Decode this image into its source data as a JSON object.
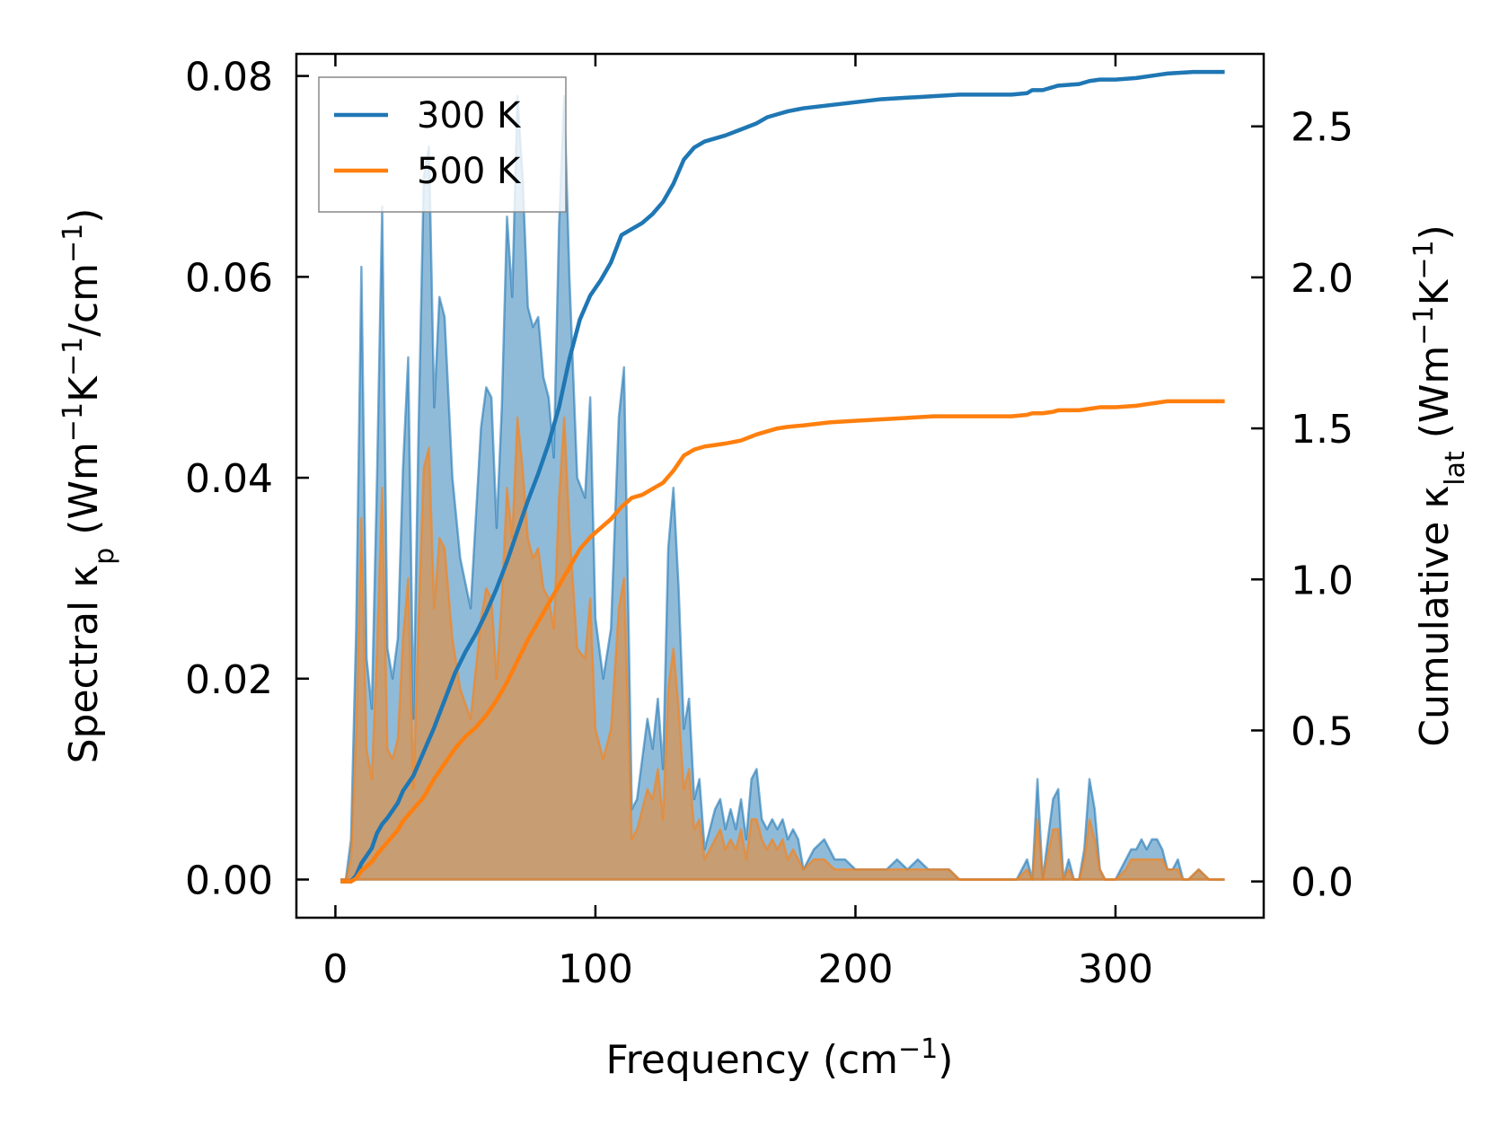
{
  "chart_data": {
    "type": "area",
    "xlabel": {
      "main": "Frequency (cm",
      "sup": "−1",
      "tail": ")"
    },
    "ylabel_left": {
      "parts": [
        "Spectral κ",
        "p",
        " (Wm",
        "−1",
        "K",
        "−1",
        "/cm",
        "−1",
        ")"
      ]
    },
    "ylabel_right": {
      "parts": [
        "Cumulative κ",
        "lat",
        " (Wm",
        "−1",
        "K",
        "−1",
        ")"
      ]
    },
    "xlim": [
      -15,
      357
    ],
    "ylim_left": [
      -0.0038,
      0.0822
    ],
    "ylim_right": [
      -0.12,
      2.74
    ],
    "x_ticks": [
      0,
      100,
      200,
      300
    ],
    "x_tick_labels": [
      "0",
      "100",
      "200",
      "300"
    ],
    "y_left_ticks": [
      0.0,
      0.02,
      0.04,
      0.06,
      0.08
    ],
    "y_left_tick_labels": [
      "0.00",
      "0.02",
      "0.04",
      "0.06",
      "0.08"
    ],
    "y_right_ticks": [
      0.0,
      0.5,
      1.0,
      1.5,
      2.0,
      2.5
    ],
    "y_right_tick_labels": [
      "0.0",
      "0.5",
      "1.0",
      "1.5",
      "2.0",
      "2.5"
    ],
    "legend": {
      "position": "top-left",
      "entries": [
        "300 K",
        "500 K"
      ]
    },
    "colors": {
      "300 K": "#1f77b4",
      "500 K": "#ff7f0e"
    },
    "spectral": {
      "x": [
        2,
        4,
        6,
        8,
        10,
        12,
        14,
        16,
        18,
        20,
        22,
        24,
        26,
        28,
        30,
        32,
        34,
        36,
        38,
        40,
        42,
        45,
        48,
        52,
        56,
        58,
        60,
        62,
        64,
        66,
        68,
        70,
        72,
        74,
        76,
        78,
        80,
        82,
        84,
        86,
        88,
        90,
        93,
        96,
        98,
        100,
        103,
        106,
        109,
        111,
        114,
        116,
        118,
        120,
        122,
        124,
        126,
        128,
        130,
        132,
        134,
        136,
        138,
        140,
        142,
        144,
        146,
        148,
        150,
        152,
        154,
        156,
        158,
        160,
        162,
        164,
        166,
        168,
        170,
        172,
        174,
        176,
        178,
        180,
        184,
        188,
        192,
        196,
        200,
        206,
        212,
        216,
        220,
        224,
        228,
        232,
        236,
        240,
        244,
        250,
        256,
        262,
        266,
        268,
        270,
        272,
        276,
        278,
        280,
        282,
        284,
        286,
        288,
        290,
        292,
        294,
        296,
        300,
        304,
        306,
        308,
        310,
        312,
        314,
        316,
        318,
        320,
        322,
        324,
        326,
        328,
        332,
        336,
        342
      ],
      "series": [
        {
          "name": "300 K",
          "values": [
            0.0,
            0.0,
            0.004,
            0.025,
            0.061,
            0.022,
            0.017,
            0.04,
            0.067,
            0.023,
            0.02,
            0.024,
            0.041,
            0.052,
            0.016,
            0.045,
            0.07,
            0.073,
            0.047,
            0.058,
            0.056,
            0.04,
            0.032,
            0.027,
            0.045,
            0.049,
            0.048,
            0.035,
            0.047,
            0.066,
            0.058,
            0.078,
            0.07,
            0.057,
            0.055,
            0.056,
            0.05,
            0.048,
            0.042,
            0.065,
            0.078,
            0.06,
            0.04,
            0.038,
            0.048,
            0.026,
            0.02,
            0.025,
            0.046,
            0.051,
            0.007,
            0.008,
            0.012,
            0.016,
            0.013,
            0.018,
            0.011,
            0.033,
            0.039,
            0.029,
            0.015,
            0.018,
            0.008,
            0.01,
            0.003,
            0.005,
            0.007,
            0.008,
            0.005,
            0.007,
            0.005,
            0.008,
            0.004,
            0.01,
            0.011,
            0.006,
            0.005,
            0.006,
            0.005,
            0.006,
            0.004,
            0.005,
            0.004,
            0.001,
            0.003,
            0.004,
            0.002,
            0.002,
            0.001,
            0.001,
            0.001,
            0.002,
            0.001,
            0.002,
            0.001,
            0.001,
            0.001,
            0.0,
            0.0,
            0.0,
            0.0,
            0.0,
            0.002,
            0.0,
            0.01,
            0.0,
            0.008,
            0.009,
            0.0,
            0.002,
            0.0,
            0.0,
            0.003,
            0.01,
            0.007,
            0.001,
            0.0,
            0.0,
            0.002,
            0.003,
            0.003,
            0.004,
            0.003,
            0.004,
            0.004,
            0.003,
            0.001,
            0.001,
            0.002,
            0.0,
            0.0,
            0.001,
            0.0,
            0.0
          ]
        },
        {
          "name": "500 K",
          "values": [
            0.0,
            0.0,
            0.002,
            0.015,
            0.036,
            0.013,
            0.01,
            0.023,
            0.039,
            0.013,
            0.012,
            0.014,
            0.024,
            0.03,
            0.009,
            0.026,
            0.041,
            0.043,
            0.027,
            0.034,
            0.033,
            0.024,
            0.019,
            0.016,
            0.026,
            0.029,
            0.028,
            0.02,
            0.028,
            0.039,
            0.034,
            0.046,
            0.041,
            0.034,
            0.032,
            0.033,
            0.029,
            0.028,
            0.025,
            0.038,
            0.046,
            0.035,
            0.023,
            0.022,
            0.028,
            0.015,
            0.012,
            0.015,
            0.027,
            0.03,
            0.004,
            0.005,
            0.007,
            0.009,
            0.008,
            0.011,
            0.006,
            0.019,
            0.023,
            0.017,
            0.009,
            0.011,
            0.005,
            0.006,
            0.002,
            0.003,
            0.004,
            0.005,
            0.003,
            0.004,
            0.003,
            0.005,
            0.002,
            0.006,
            0.006,
            0.004,
            0.003,
            0.004,
            0.003,
            0.004,
            0.002,
            0.003,
            0.002,
            0.001,
            0.002,
            0.002,
            0.001,
            0.001,
            0.001,
            0.001,
            0.001,
            0.001,
            0.001,
            0.001,
            0.001,
            0.001,
            0.001,
            0.0,
            0.0,
            0.0,
            0.0,
            0.0,
            0.001,
            0.0,
            0.006,
            0.0,
            0.005,
            0.005,
            0.0,
            0.001,
            0.0,
            0.0,
            0.002,
            0.006,
            0.004,
            0.001,
            0.0,
            0.0,
            0.001,
            0.002,
            0.002,
            0.002,
            0.002,
            0.002,
            0.002,
            0.002,
            0.001,
            0.001,
            0.001,
            0.0,
            0.0,
            0.001,
            0.0,
            0.0
          ]
        }
      ]
    },
    "cumulative": {
      "x": [
        2,
        4,
        6,
        8,
        10,
        14,
        16,
        18,
        20,
        24,
        26,
        30,
        34,
        38,
        42,
        46,
        50,
        54,
        58,
        62,
        66,
        70,
        74,
        78,
        82,
        86,
        90,
        94,
        98,
        102,
        106,
        110,
        114,
        118,
        122,
        126,
        130,
        134,
        138,
        142,
        146,
        150,
        156,
        162,
        166,
        170,
        174,
        180,
        190,
        200,
        210,
        220,
        230,
        240,
        250,
        260,
        266,
        268,
        272,
        276,
        278,
        286,
        290,
        294,
        300,
        308,
        316,
        320,
        330,
        342
      ],
      "series": [
        {
          "name": "300 K",
          "values": [
            0.0,
            0.0,
            0.0,
            0.02,
            0.06,
            0.11,
            0.16,
            0.19,
            0.21,
            0.26,
            0.3,
            0.35,
            0.43,
            0.51,
            0.6,
            0.69,
            0.76,
            0.82,
            0.89,
            0.97,
            1.06,
            1.16,
            1.26,
            1.35,
            1.45,
            1.57,
            1.73,
            1.86,
            1.94,
            1.99,
            2.05,
            2.14,
            2.16,
            2.18,
            2.21,
            2.25,
            2.31,
            2.39,
            2.43,
            2.45,
            2.46,
            2.47,
            2.49,
            2.51,
            2.53,
            2.54,
            2.55,
            2.56,
            2.57,
            2.58,
            2.59,
            2.595,
            2.6,
            2.605,
            2.605,
            2.605,
            2.61,
            2.62,
            2.62,
            2.63,
            2.635,
            2.64,
            2.65,
            2.655,
            2.655,
            2.66,
            2.67,
            2.675,
            2.68,
            2.68
          ]
        },
        {
          "name": "500 K",
          "values": [
            0.0,
            0.0,
            0.0,
            0.01,
            0.035,
            0.065,
            0.09,
            0.11,
            0.13,
            0.17,
            0.2,
            0.24,
            0.28,
            0.34,
            0.39,
            0.44,
            0.48,
            0.51,
            0.55,
            0.6,
            0.66,
            0.73,
            0.8,
            0.86,
            0.92,
            0.98,
            1.04,
            1.1,
            1.14,
            1.17,
            1.2,
            1.24,
            1.27,
            1.28,
            1.3,
            1.32,
            1.36,
            1.41,
            1.43,
            1.44,
            1.445,
            1.45,
            1.46,
            1.48,
            1.49,
            1.5,
            1.505,
            1.51,
            1.52,
            1.525,
            1.53,
            1.535,
            1.54,
            1.54,
            1.54,
            1.54,
            1.545,
            1.55,
            1.55,
            1.555,
            1.56,
            1.56,
            1.565,
            1.57,
            1.57,
            1.575,
            1.585,
            1.59,
            1.59,
            1.59
          ]
        }
      ]
    }
  }
}
